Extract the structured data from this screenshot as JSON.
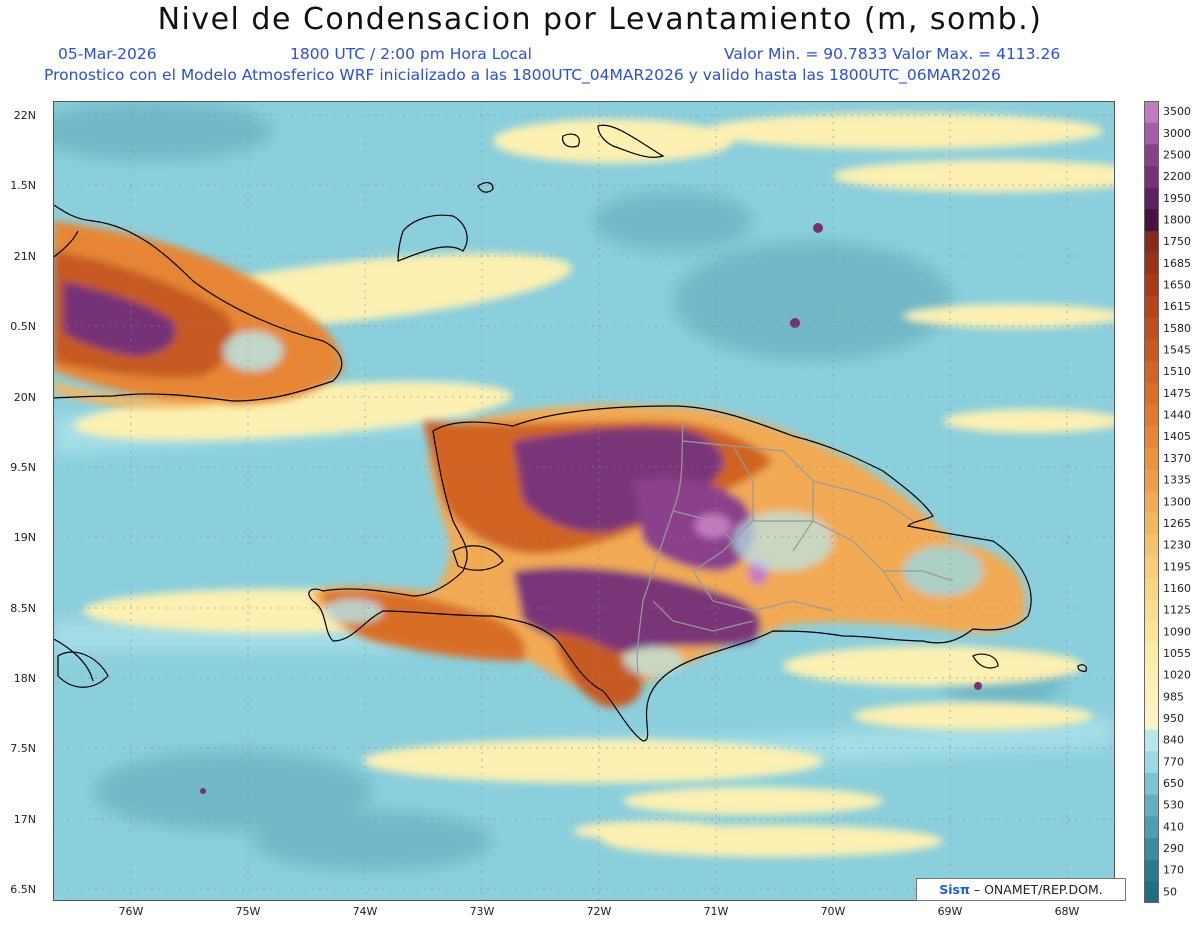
{
  "header": {
    "title": "Nivel de Condensacion por Levantamiento (m, somb.)",
    "date": "05-Mar-2026",
    "time": "1800 UTC / 2:00 pm Hora Local",
    "range": "Valor Min. = 90.7833  Valor Max. = 4113.26",
    "model_note": "Pronostico con el Modelo Atmosferico WRF inicializado a las 1800UTC_04MAR2026 y valido hasta las  1800UTC_06MAR2026"
  },
  "axes": {
    "lat_labels": [
      "22N",
      "1.5N",
      "21N",
      "0.5N",
      "20N",
      "9.5N",
      "19N",
      "8.5N",
      "18N",
      "7.5N",
      "17N",
      "6.5N"
    ],
    "lon_labels": [
      "76W",
      "75W",
      "74W",
      "73W",
      "72W",
      "71W",
      "70W",
      "69W",
      "68W"
    ]
  },
  "legend": {
    "levels": [
      "3500",
      "3000",
      "2500",
      "2200",
      "1950",
      "1800",
      "1750",
      "1685",
      "1650",
      "1615",
      "1580",
      "1545",
      "1510",
      "1475",
      "1440",
      "1405",
      "1370",
      "1335",
      "1300",
      "1265",
      "1230",
      "1195",
      "1160",
      "1125",
      "1090",
      "1055",
      "1020",
      "985",
      "950",
      "840",
      "770",
      "650",
      "530",
      "410",
      "290",
      "170",
      "50"
    ],
    "colors": [
      "#c47ac0",
      "#a95aa8",
      "#8a3f8a",
      "#763276",
      "#5e2260",
      "#4a1240",
      "#8a2a1a",
      "#9a3218",
      "#a83a1a",
      "#b4441c",
      "#be501e",
      "#c65a20",
      "#d06424",
      "#d86e28",
      "#e07a30",
      "#e68636",
      "#ea923e",
      "#ee9e48",
      "#f2aa54",
      "#f4b660",
      "#f6c26c",
      "#f8cc78",
      "#f9d684",
      "#fade90",
      "#fbe69c",
      "#fbeca6",
      "#fcf0b2",
      "#fcf2bc",
      "#fcf4c6",
      "#b8e8ee",
      "#9ad8e2",
      "#7cc4d2",
      "#64b0c2",
      "#4e9eb2",
      "#3a8aa0",
      "#2a7a92",
      "#1f6e86"
    ]
  },
  "credit": {
    "brand": "Sisπ",
    "org": "– ONAMET/REP.DOM."
  },
  "colors": {
    "ocean": "#8ccfdc",
    "land_low": "#f4b660",
    "high": "#7a3478"
  }
}
